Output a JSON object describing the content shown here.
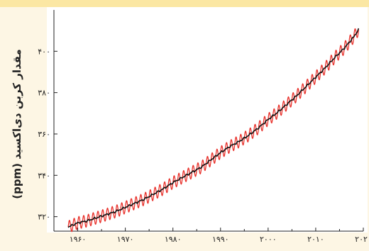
{
  "chart_data": {
    "type": "line",
    "ylabel": "مقدار کربن دی‌اکسید (ppm)",
    "xlim": [
      1955,
      2020
    ],
    "ylim": [
      313,
      420
    ],
    "x_ticks": [
      1960,
      1970,
      1980,
      1990,
      2000,
      2010,
      2020
    ],
    "x_tick_labels": [
      "۱۹۶۰",
      "۱۹۷۰",
      "۱۹۸۰",
      "۱۹۹۰",
      "۲۰۰۰",
      "۲۰۱۰",
      "۲۰۲۰"
    ],
    "y_ticks": [
      320,
      340,
      360,
      380,
      400
    ],
    "y_tick_labels": [
      "۳۲۰",
      "۳۴۰",
      "۳۶۰",
      "۳۸۰",
      "۴۰۰"
    ],
    "grid": false,
    "seasonal_amplitude_ppm": 3,
    "series": [
      {
        "color": "#e8312b",
        "style": "monthly seasonal cycle",
        "x": [
          1958,
          1960,
          1962,
          1964,
          1966,
          1968,
          1970,
          1972,
          1974,
          1976,
          1978,
          1980,
          1982,
          1984,
          1986,
          1988,
          1990,
          1992,
          1994,
          1996,
          1998,
          2000,
          2002,
          2004,
          2006,
          2008,
          2010,
          2012,
          2014,
          2016,
          2018,
          2019
        ],
        "y": [
          315,
          317,
          318,
          319.5,
          321,
          322.5,
          324.5,
          326.5,
          328.5,
          331,
          333.5,
          336.5,
          339,
          341.5,
          344,
          347.5,
          351,
          354,
          356.5,
          359.5,
          363,
          367,
          370.5,
          374.5,
          378.5,
          383,
          387.5,
          392,
          397,
          401.5,
          407,
          410.5
        ]
      },
      {
        "color": "#111111",
        "style": "annual trend",
        "x": [
          1958,
          1960,
          1962,
          1964,
          1966,
          1968,
          1970,
          1972,
          1974,
          1976,
          1978,
          1980,
          1982,
          1984,
          1986,
          1988,
          1990,
          1992,
          1994,
          1996,
          1998,
          2000,
          2002,
          2004,
          2006,
          2008,
          2010,
          2012,
          2014,
          2016,
          2018,
          2019
        ],
        "y": [
          315,
          317,
          318,
          319.5,
          321,
          322.5,
          324.5,
          326.5,
          328.5,
          331,
          333.5,
          336.5,
          339,
          341.5,
          344,
          347.5,
          351,
          354,
          356.5,
          359.5,
          363,
          367,
          370.5,
          374.5,
          378.5,
          383,
          387.5,
          392,
          397,
          401.5,
          407,
          410.5
        ]
      }
    ]
  }
}
